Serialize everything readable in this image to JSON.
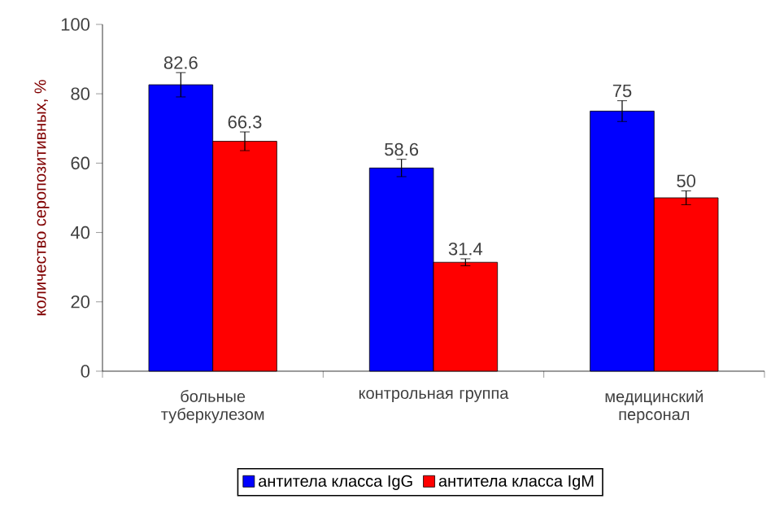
{
  "chart_data": {
    "type": "bar",
    "ylabel": "количество серопозитивных, %",
    "categories": [
      "больные туберкулезом",
      "контрольная группа",
      "медицинский персонал"
    ],
    "series": [
      {
        "name": "антитела класса  IgG",
        "color": "#0000ff",
        "values": [
          82.6,
          58.6,
          75
        ],
        "errors": [
          3.5,
          2.5,
          3
        ]
      },
      {
        "name": "антитела класса  IgM",
        "color": "#ff0000",
        "values": [
          66.3,
          31.4,
          50
        ],
        "errors": [
          2.7,
          1,
          2
        ]
      }
    ],
    "ylim": [
      0,
      100
    ],
    "yticks": [
      0,
      20,
      40,
      60,
      80,
      100
    ],
    "data_labels": true,
    "legend": "bottom",
    "grid": false
  }
}
